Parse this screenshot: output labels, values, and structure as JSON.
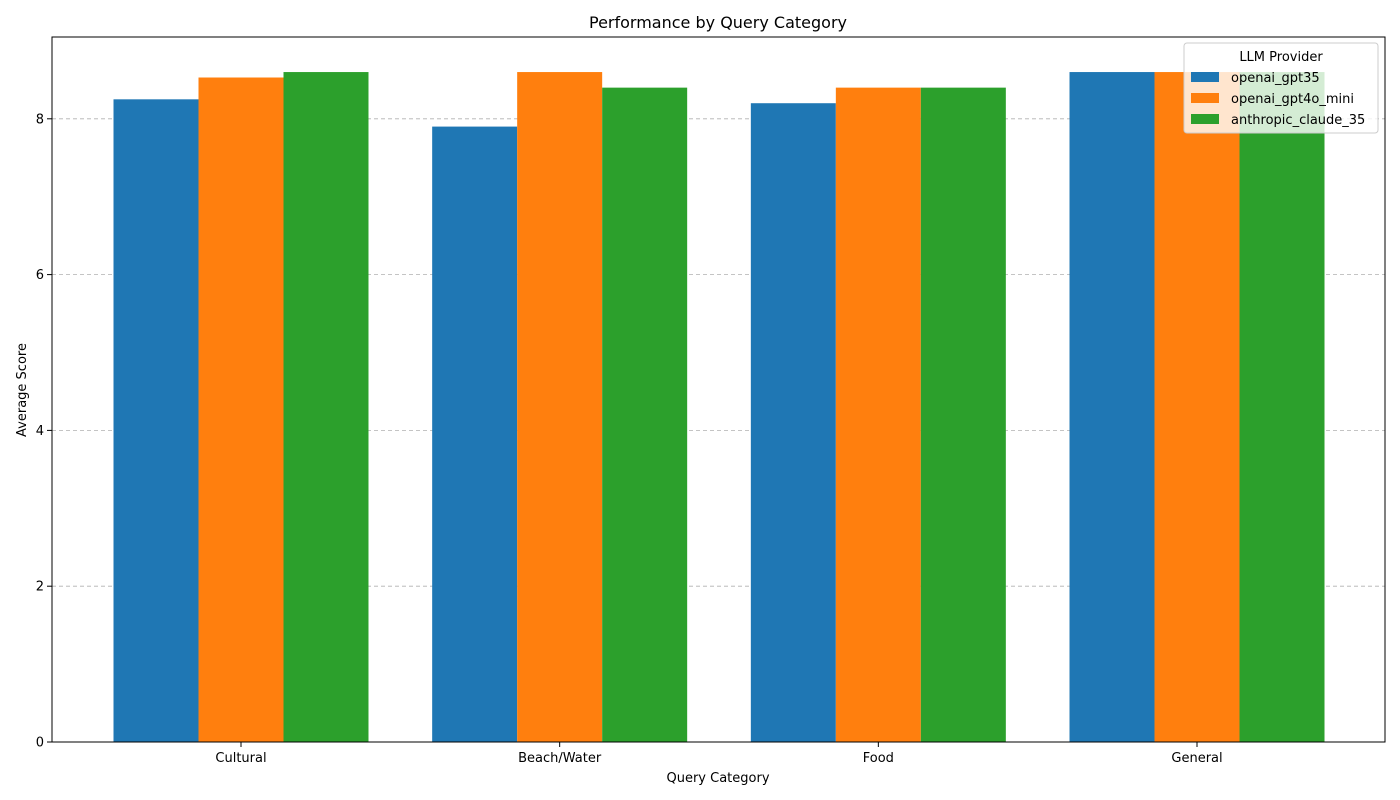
{
  "chart_data": {
    "type": "bar",
    "title": "Performance by Query Category",
    "xlabel": "Query Category",
    "ylabel": "Average Score",
    "categories": [
      "Cultural",
      "Beach/Water",
      "Food",
      "General"
    ],
    "series": [
      {
        "name": "openai_gpt35",
        "values": [
          8.25,
          7.9,
          8.2,
          8.6
        ],
        "color": "#1f77b4"
      },
      {
        "name": "openai_gpt4o_mini",
        "values": [
          8.53,
          8.6,
          8.4,
          8.6
        ],
        "color": "#ff7f0e"
      },
      {
        "name": "anthropic_claude_35",
        "values": [
          8.6,
          8.4,
          8.4,
          8.6
        ],
        "color": "#2ca02c"
      }
    ],
    "ylim": [
      0,
      9.05
    ],
    "yticks": [
      0,
      2,
      4,
      6,
      8
    ],
    "grid": "y-dashed",
    "legend": {
      "title": "LLM Provider",
      "placement": "top-right"
    }
  }
}
